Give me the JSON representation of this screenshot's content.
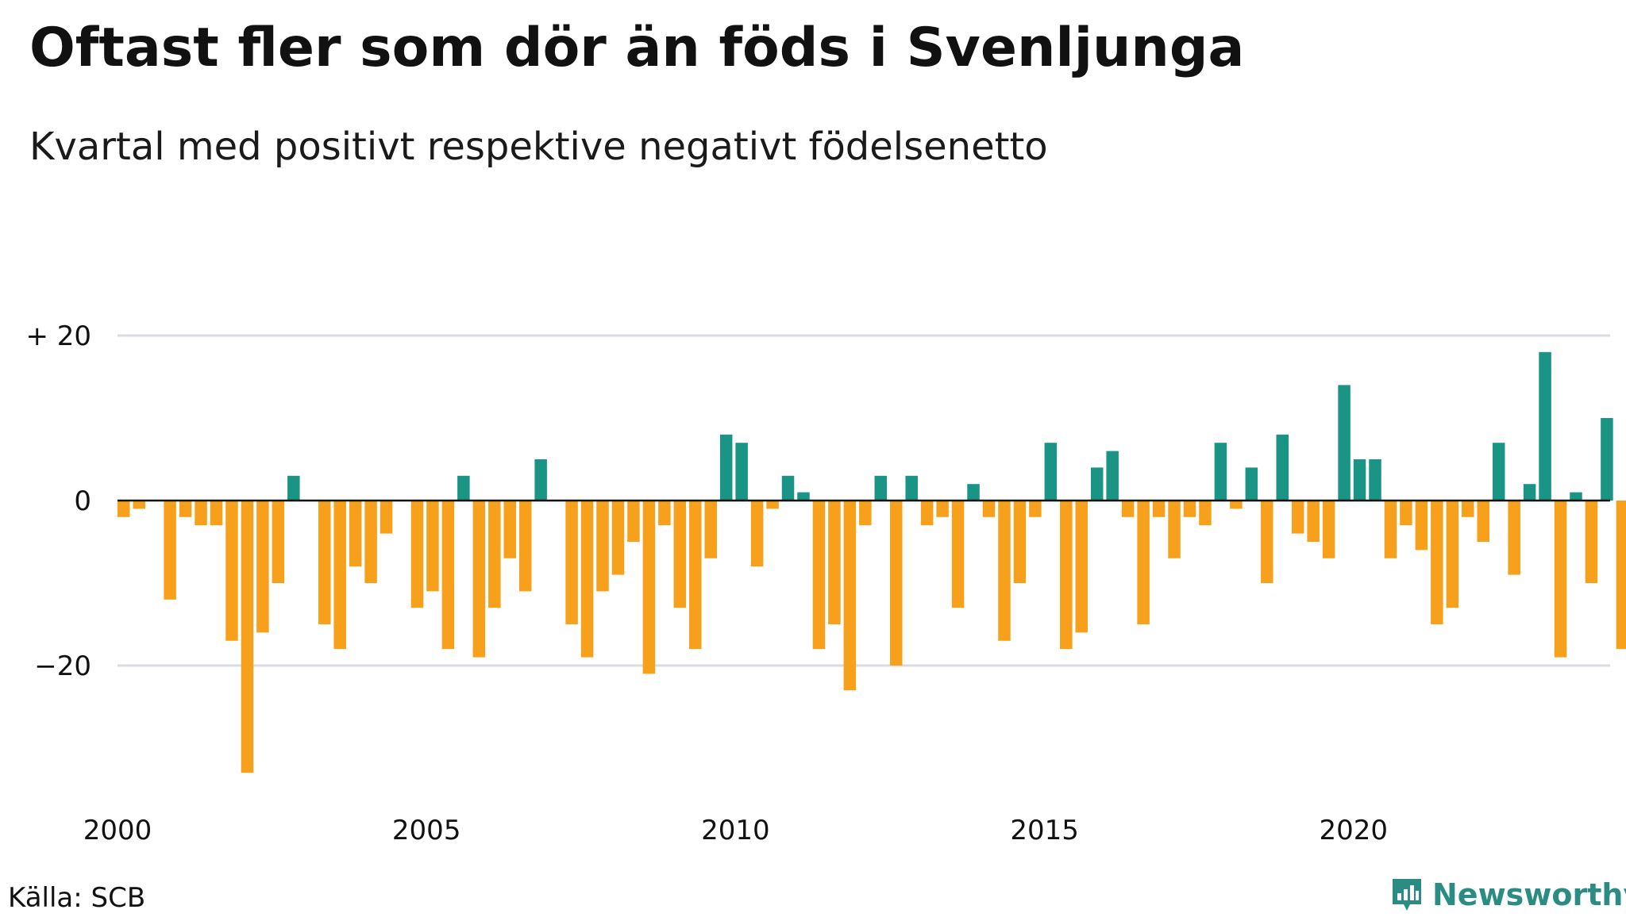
{
  "title": "Oftast fler som dör än föds i Svenljunga",
  "subtitle": "Kvartal med positivt respektive negativt födelsenetto",
  "source": "Källa: SCB",
  "brand": {
    "name": "Newsworthy",
    "icon": "newsworthy-logo-icon",
    "color": "#2a8c82"
  },
  "colors": {
    "positive": "#1a9484",
    "negative": "#f7a01c",
    "grid": "#dadbe0"
  },
  "chart_data": {
    "type": "bar",
    "title": "Oftast fler som dör än föds i Svenljunga",
    "subtitle": "Kvartal med positivt respektive negativt födelsenetto",
    "xlabel": "",
    "ylabel": "",
    "x_start": 2000,
    "x_end": 2024,
    "quarters_per_year": 4,
    "ylim": [
      -35,
      30
    ],
    "grid": true,
    "yticks": [
      {
        "value": 20,
        "label": "+ 20"
      },
      {
        "value": 0,
        "label": "0"
      },
      {
        "value": -20,
        "label": "−20"
      }
    ],
    "xticks": [
      {
        "value": 2000,
        "label": "2000"
      },
      {
        "value": 2005,
        "label": "2005"
      },
      {
        "value": 2010,
        "label": "2010"
      },
      {
        "value": 2015,
        "label": "2015"
      },
      {
        "value": 2020,
        "label": "2020"
      }
    ],
    "values": [
      -2,
      -1,
      0,
      -12,
      -2,
      -3,
      -3,
      -17,
      -33,
      -16,
      -10,
      3,
      0,
      -15,
      -18,
      -8,
      -10,
      -4,
      0,
      -13,
      -11,
      -18,
      3,
      -19,
      -13,
      -7,
      -11,
      5,
      0,
      -15,
      -19,
      -11,
      -9,
      -5,
      -21,
      -3,
      -13,
      -18,
      -7,
      8,
      7,
      -8,
      -1,
      3,
      1,
      -18,
      -15,
      -23,
      -3,
      3,
      -20,
      3,
      -3,
      -2,
      -13,
      2,
      -2,
      -17,
      -10,
      -2,
      7,
      -18,
      -16,
      4,
      6,
      -2,
      -15,
      -2,
      -7,
      -2,
      -3,
      7,
      -1,
      4,
      -10,
      8,
      -4,
      -5,
      -7,
      14,
      5,
      5,
      -7,
      -3,
      -6,
      -15,
      -13,
      -2,
      -5,
      7,
      -9,
      2,
      18,
      -19,
      1,
      -10,
      10,
      -18
    ]
  }
}
